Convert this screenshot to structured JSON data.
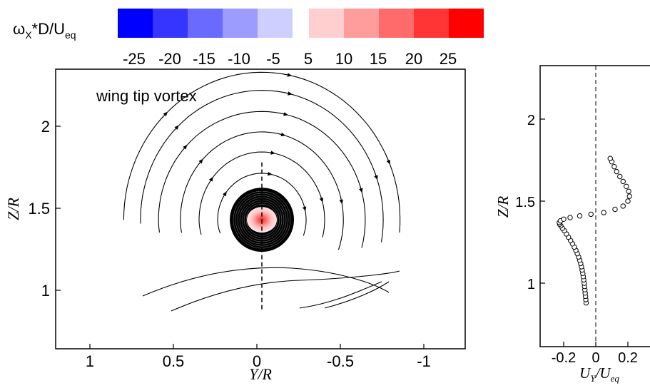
{
  "colorbar": {
    "label_main": "ω",
    "label_sub": "X",
    "label_mid": "*D/U",
    "label_sub2": "eq",
    "negative": [
      {
        "label": "-25",
        "color": "#0000ff"
      },
      {
        "label": "-20",
        "color": "#3535ff"
      },
      {
        "label": "-15",
        "color": "#6a6aff"
      },
      {
        "label": "-10",
        "color": "#9c9cff"
      },
      {
        "label": "-5",
        "color": "#cfcfff"
      }
    ],
    "positive": [
      {
        "label": "5",
        "color": "#ffcfcf"
      },
      {
        "label": "10",
        "color": "#ff9c9c"
      },
      {
        "label": "15",
        "color": "#ff6a6a"
      },
      {
        "label": "20",
        "color": "#ff3535"
      },
      {
        "label": "25",
        "color": "#ff0000"
      }
    ]
  },
  "chart_data": [
    {
      "type": "streamline",
      "annotation": "wing tip vortex",
      "xlabel": "Y/R",
      "ylabel": "Z/R",
      "xlim": [
        1.25,
        -1.25
      ],
      "ylim": [
        0.55,
        2.35
      ],
      "xticks": [
        {
          "v": 1,
          "label": "1"
        },
        {
          "v": 0.5,
          "label": "0.5"
        },
        {
          "v": 0,
          "label": "0"
        },
        {
          "v": -0.5,
          "label": "-0.5"
        },
        {
          "v": -1,
          "label": "-1"
        }
      ],
      "yticks": [
        {
          "v": 1,
          "label": "1"
        },
        {
          "v": 1.5,
          "label": "1.5"
        },
        {
          "v": 2,
          "label": "2"
        }
      ],
      "vortex_center": {
        "y": -0.03,
        "z": 1.43
      },
      "dashed_line_y": -0.03,
      "dashed_line_z": [
        0.87,
        1.78
      ]
    },
    {
      "type": "scatter",
      "xlabel": "U_Y/U_eq",
      "xlabel_main": "U",
      "xlabel_sub": "Y",
      "xlabel_mid": "/U",
      "xlabel_sub2": "eq",
      "ylabel": "Z/R",
      "xlim": [
        -0.32,
        0.32
      ],
      "ylim": [
        0.55,
        2.35
      ],
      "xticks": [
        {
          "v": -0.2,
          "label": "-0.2"
        },
        {
          "v": 0,
          "label": "0"
        },
        {
          "v": 0.2,
          "label": "0.2"
        }
      ],
      "yticks": [
        {
          "v": 1,
          "label": "1"
        },
        {
          "v": 1.5,
          "label": "1.5"
        },
        {
          "v": 2,
          "label": "2"
        }
      ],
      "series": [
        {
          "x": [
            -0.06,
            -0.062,
            -0.064,
            -0.066,
            -0.068,
            -0.07,
            -0.072,
            -0.075,
            -0.078,
            -0.081,
            -0.085,
            -0.089,
            -0.094,
            -0.1,
            -0.107,
            -0.115,
            -0.124,
            -0.134,
            -0.145,
            -0.157,
            -0.17,
            -0.183,
            -0.196,
            -0.208,
            -0.218,
            -0.225,
            -0.227,
            -0.22,
            -0.2,
            -0.16,
            -0.1,
            -0.03,
            0.05,
            0.12,
            0.17,
            0.2,
            0.21,
            0.205,
            0.19,
            0.17,
            0.15,
            0.13,
            0.115,
            0.1,
            0.09
          ],
          "y": [
            0.88,
            0.9,
            0.92,
            0.94,
            0.96,
            0.98,
            1.0,
            1.02,
            1.04,
            1.06,
            1.08,
            1.1,
            1.12,
            1.14,
            1.16,
            1.18,
            1.2,
            1.22,
            1.24,
            1.26,
            1.28,
            1.3,
            1.32,
            1.335,
            1.35,
            1.36,
            1.37,
            1.38,
            1.39,
            1.4,
            1.41,
            1.42,
            1.43,
            1.45,
            1.47,
            1.5,
            1.53,
            1.56,
            1.59,
            1.62,
            1.65,
            1.68,
            1.71,
            1.74,
            1.76
          ]
        }
      ]
    }
  ]
}
